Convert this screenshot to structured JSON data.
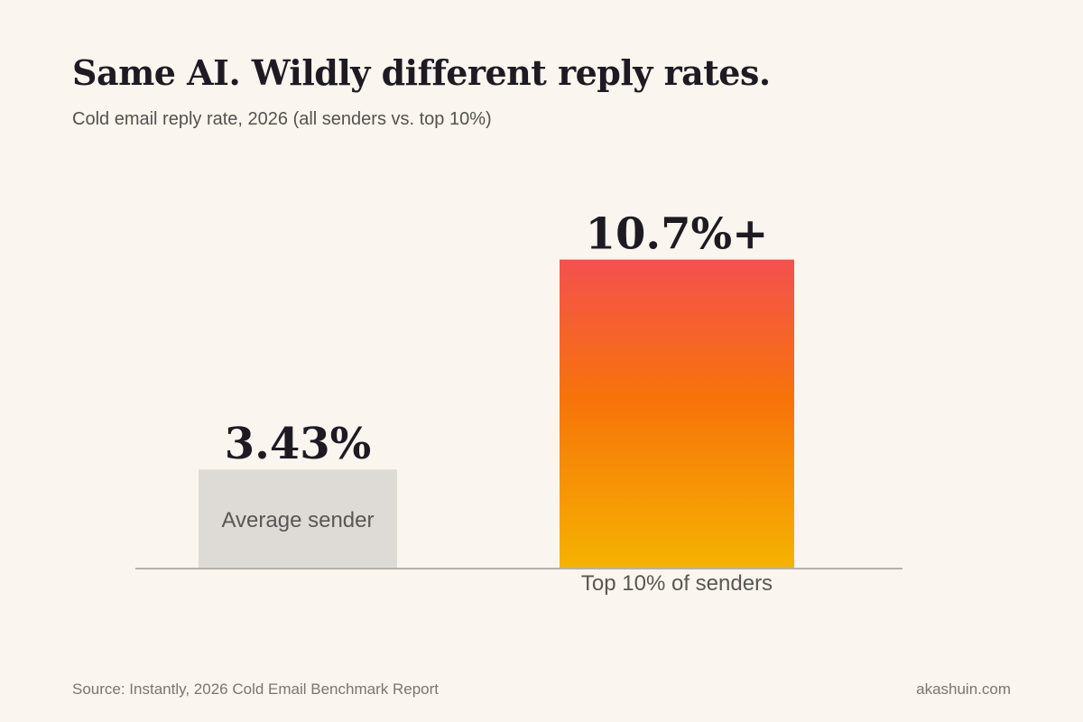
{
  "chart_data": {
    "type": "bar",
    "title": "Same AI. Wildly different reply rates.",
    "subtitle": "Cold email reply rate, 2026 (all senders vs. top 10%)",
    "categories": [
      "Average sender",
      "Top 10% of senders"
    ],
    "values": [
      3.43,
      10.7
    ],
    "value_labels": [
      "3.43%",
      "10.7%+"
    ],
    "xlabel": "",
    "ylabel": "",
    "ylim": [
      0,
      12.5
    ],
    "grid": false,
    "legend": "none",
    "colors": {
      "average_bar": "#dedad5",
      "top_bar_gradient": [
        "#f4504f",
        "#f7730a",
        "#f5b301"
      ],
      "baseline": "#b5b1ad"
    }
  },
  "footer": {
    "source": "Source: Instantly, 2026 Cold Email Benchmark Report",
    "site": "akashuin.com"
  }
}
